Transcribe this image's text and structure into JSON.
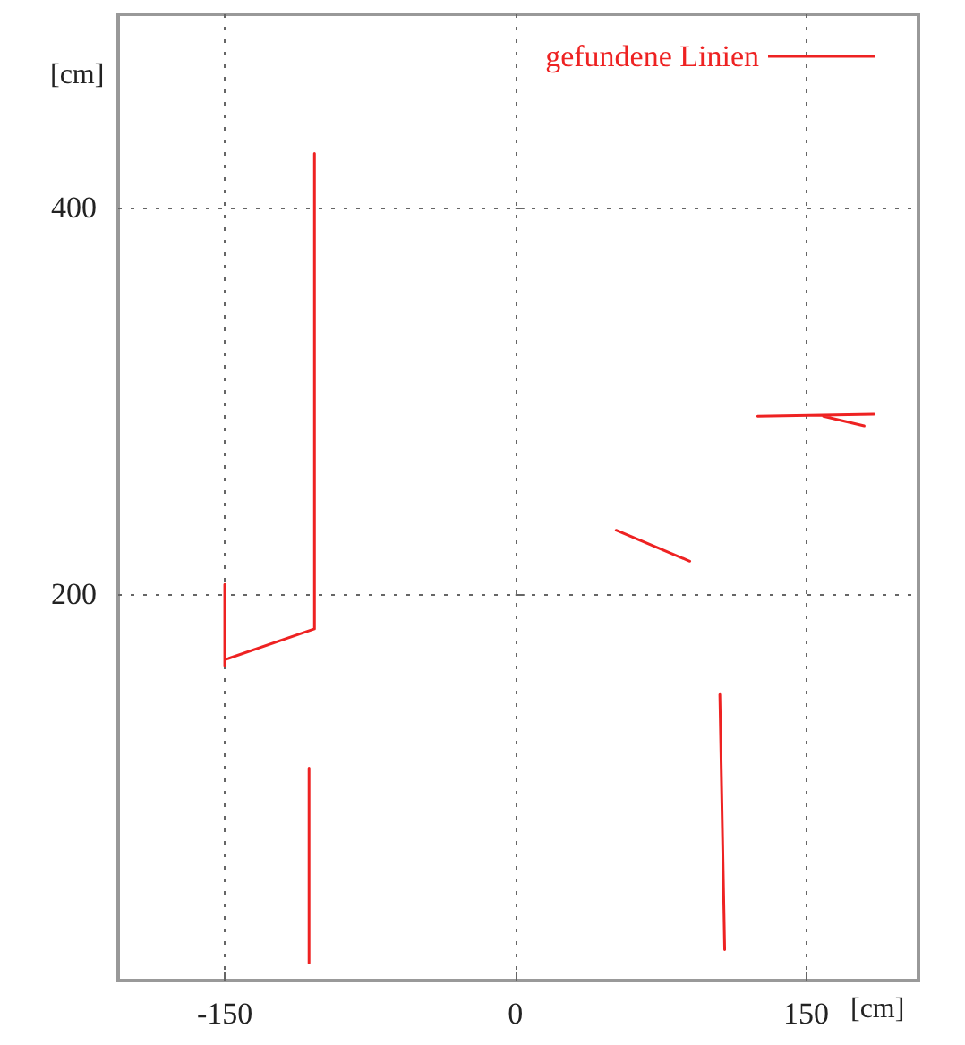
{
  "chart_data": {
    "type": "line",
    "xlabel": "[cm]",
    "ylabel": "[cm]",
    "xlim": [
      -205,
      208
    ],
    "ylim": [
      0,
      500
    ],
    "xticks": [
      -150,
      0,
      150
    ],
    "yticks": [
      200,
      400
    ],
    "grid": true,
    "legend": "top right",
    "marker": "none",
    "line_style": "solid",
    "series": [
      {
        "name": "gefundene Linien",
        "color": "#ee2222",
        "x": [
          -103.7,
          -103.7,
          -150,
          null,
          -150,
          -150,
          null,
          -106.5,
          -106.5,
          null,
          52,
          90,
          null,
          125,
          185,
          null,
          159,
          180,
          null,
          105.5,
          108
        ],
        "values": [
          428,
          182,
          166,
          null,
          205,
          163,
          null,
          110,
          9,
          null,
          233,
          217,
          null,
          292,
          293,
          null,
          292,
          287,
          null,
          148,
          16
        ]
      }
    ]
  }
}
